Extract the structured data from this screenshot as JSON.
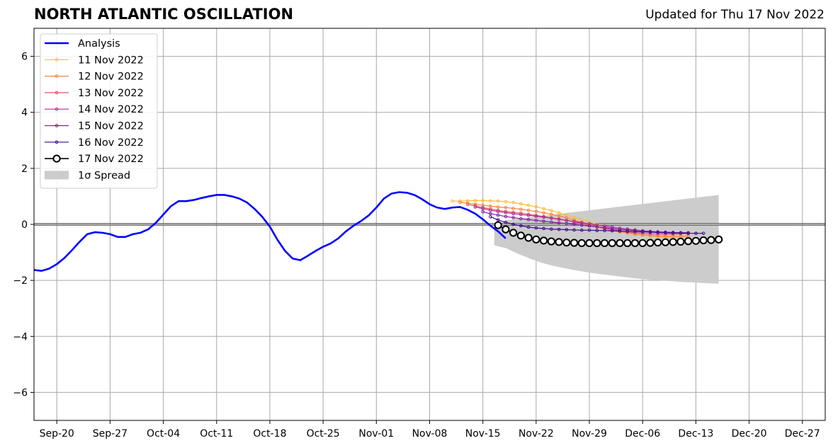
{
  "chart_data": {
    "type": "line",
    "title": "NORTH ATLANTIC OSCILLATION",
    "subtitle": "Updated for Thu 17 Nov 2022",
    "xlabel": "",
    "ylabel": "",
    "x_unit": "days, day 0 = Sep-17",
    "xlim": [
      0,
      104
    ],
    "ylim": [
      -7,
      7
    ],
    "yticks": [
      -6,
      -4,
      -2,
      0,
      2,
      4,
      6
    ],
    "xticks": [
      {
        "day": 3,
        "label": "Sep-20"
      },
      {
        "day": 10,
        "label": "Sep-27"
      },
      {
        "day": 17,
        "label": "Oct-04"
      },
      {
        "day": 24,
        "label": "Oct-11"
      },
      {
        "day": 31,
        "label": "Oct-18"
      },
      {
        "day": 38,
        "label": "Oct-25"
      },
      {
        "day": 45,
        "label": "Nov-01"
      },
      {
        "day": 52,
        "label": "Nov-08"
      },
      {
        "day": 59,
        "label": "Nov-15"
      },
      {
        "day": 66,
        "label": "Nov-22"
      },
      {
        "day": 73,
        "label": "Nov-29"
      },
      {
        "day": 80,
        "label": "Dec-06"
      },
      {
        "day": 87,
        "label": "Dec-13"
      },
      {
        "day": 94,
        "label": "Dec-20"
      },
      {
        "day": 101,
        "label": "Dec-27"
      }
    ],
    "grid": true,
    "legend_position": "top-left",
    "analysis": {
      "name": "Analysis",
      "color": "#0000ff",
      "start_day": 0,
      "values": [
        -1.63,
        -1.66,
        -1.58,
        -1.42,
        -1.2,
        -0.92,
        -0.62,
        -0.35,
        -0.28,
        -0.3,
        -0.35,
        -0.45,
        -0.45,
        -0.35,
        -0.3,
        -0.18,
        0.05,
        0.35,
        0.65,
        0.83,
        0.83,
        0.87,
        0.94,
        1.0,
        1.05,
        1.05,
        1.0,
        0.92,
        0.78,
        0.55,
        0.27,
        -0.08,
        -0.55,
        -0.95,
        -1.22,
        -1.28,
        -1.12,
        -0.95,
        -0.8,
        -0.68,
        -0.5,
        -0.25,
        -0.05,
        0.12,
        0.32,
        0.6,
        0.92,
        1.1,
        1.15,
        1.13,
        1.05,
        0.9,
        0.72,
        0.6,
        0.55,
        0.6,
        0.62,
        0.52,
        0.38,
        0.18,
        -0.05,
        -0.25,
        -0.5
      ]
    },
    "spread": {
      "name": "1σ Spread",
      "color": "#cccccc",
      "start_day": 60.5,
      "end_day": 90,
      "upper": [
        -0.05,
        0.15,
        0.2,
        0.25,
        0.3,
        0.35,
        0.4,
        0.45,
        0.5,
        0.55,
        0.6,
        0.65,
        0.7,
        0.75,
        0.8,
        0.85,
        0.9,
        0.95,
        1.0,
        1.05
      ],
      "lower": [
        -0.75,
        -0.85,
        -1.05,
        -1.22,
        -1.37,
        -1.48,
        -1.57,
        -1.65,
        -1.72,
        -1.78,
        -1.83,
        -1.88,
        -1.93,
        -1.97,
        -2.0,
        -2.03,
        -2.06,
        -2.08,
        -2.1,
        -2.12
      ]
    },
    "series": [
      {
        "name": "11 Nov 2022",
        "color": "#fdbe3a",
        "start_day": 55,
        "values": [
          0.83,
          0.83,
          0.84,
          0.85,
          0.85,
          0.84,
          0.83,
          0.81,
          0.78,
          0.73,
          0.68,
          0.63,
          0.56,
          0.49,
          0.41,
          0.33,
          0.24,
          0.16,
          0.08,
          0.0,
          -0.08,
          -0.15,
          -0.22,
          -0.28,
          -0.33,
          -0.37,
          -0.41,
          -0.44,
          -0.46,
          -0.47,
          -0.48,
          -0.48
        ]
      },
      {
        "name": "12 Nov 2022",
        "color": "#f4873d",
        "start_day": 56,
        "values": [
          0.78,
          0.76,
          0.72,
          0.68,
          0.65,
          0.62,
          0.6,
          0.57,
          0.54,
          0.5,
          0.46,
          0.41,
          0.36,
          0.3,
          0.23,
          0.15,
          0.07,
          -0.01,
          -0.09,
          -0.16,
          -0.22,
          -0.27,
          -0.31,
          -0.35,
          -0.38,
          -0.4,
          -0.42,
          -0.43,
          -0.43,
          -0.43,
          -0.42
        ]
      },
      {
        "name": "13 Nov 2022",
        "color": "#e0536a",
        "start_day": 57,
        "values": [
          0.71,
          0.66,
          0.6,
          0.55,
          0.5,
          0.46,
          0.43,
          0.4,
          0.36,
          0.32,
          0.28,
          0.23,
          0.19,
          0.14,
          0.09,
          0.03,
          -0.03,
          -0.09,
          -0.14,
          -0.19,
          -0.23,
          -0.27,
          -0.3,
          -0.32,
          -0.34,
          -0.35,
          -0.35,
          -0.35,
          -0.34,
          -0.33
        ]
      },
      {
        "name": "14 Nov 2022",
        "color": "#b02a8e",
        "start_day": 58,
        "values": [
          0.62,
          0.56,
          0.5,
          0.46,
          0.42,
          0.38,
          0.35,
          0.32,
          0.29,
          0.26,
          0.22,
          0.18,
          0.14,
          0.1,
          0.06,
          0.02,
          -0.02,
          -0.06,
          -0.1,
          -0.14,
          -0.17,
          -0.2,
          -0.23,
          -0.25,
          -0.27,
          -0.28,
          -0.29,
          -0.3,
          -0.3
        ]
      },
      {
        "name": "15 Nov 2022",
        "color": "#7f1ea0",
        "start_day": 59,
        "values": [
          0.45,
          0.38,
          0.33,
          0.28,
          0.24,
          0.2,
          0.17,
          0.14,
          0.11,
          0.08,
          0.05,
          0.03,
          0.0,
          -0.03,
          -0.06,
          -0.09,
          -0.12,
          -0.15,
          -0.18,
          -0.2,
          -0.22,
          -0.24,
          -0.26,
          -0.27,
          -0.28,
          -0.29,
          -0.3,
          -0.3
        ]
      },
      {
        "name": "16 Nov 2022",
        "color": "#3d0b8a",
        "start_day": 60,
        "values": [
          0.27,
          0.16,
          0.07,
          0.0,
          -0.05,
          -0.1,
          -0.13,
          -0.15,
          -0.17,
          -0.18,
          -0.19,
          -0.2,
          -0.21,
          -0.21,
          -0.22,
          -0.22,
          -0.23,
          -0.24,
          -0.25,
          -0.26,
          -0.27,
          -0.28,
          -0.29,
          -0.3,
          -0.31,
          -0.31,
          -0.32,
          -0.32,
          -0.32
        ]
      },
      {
        "name": "17 Nov 2022",
        "color": "#000000",
        "start_day": 61,
        "marker": "open-circle",
        "values": [
          -0.03,
          -0.18,
          -0.3,
          -0.4,
          -0.48,
          -0.54,
          -0.58,
          -0.61,
          -0.63,
          -0.65,
          -0.66,
          -0.67,
          -0.67,
          -0.67,
          -0.67,
          -0.67,
          -0.67,
          -0.67,
          -0.67,
          -0.67,
          -0.66,
          -0.65,
          -0.64,
          -0.63,
          -0.62,
          -0.6,
          -0.59,
          -0.57,
          -0.56,
          -0.54
        ]
      }
    ]
  }
}
